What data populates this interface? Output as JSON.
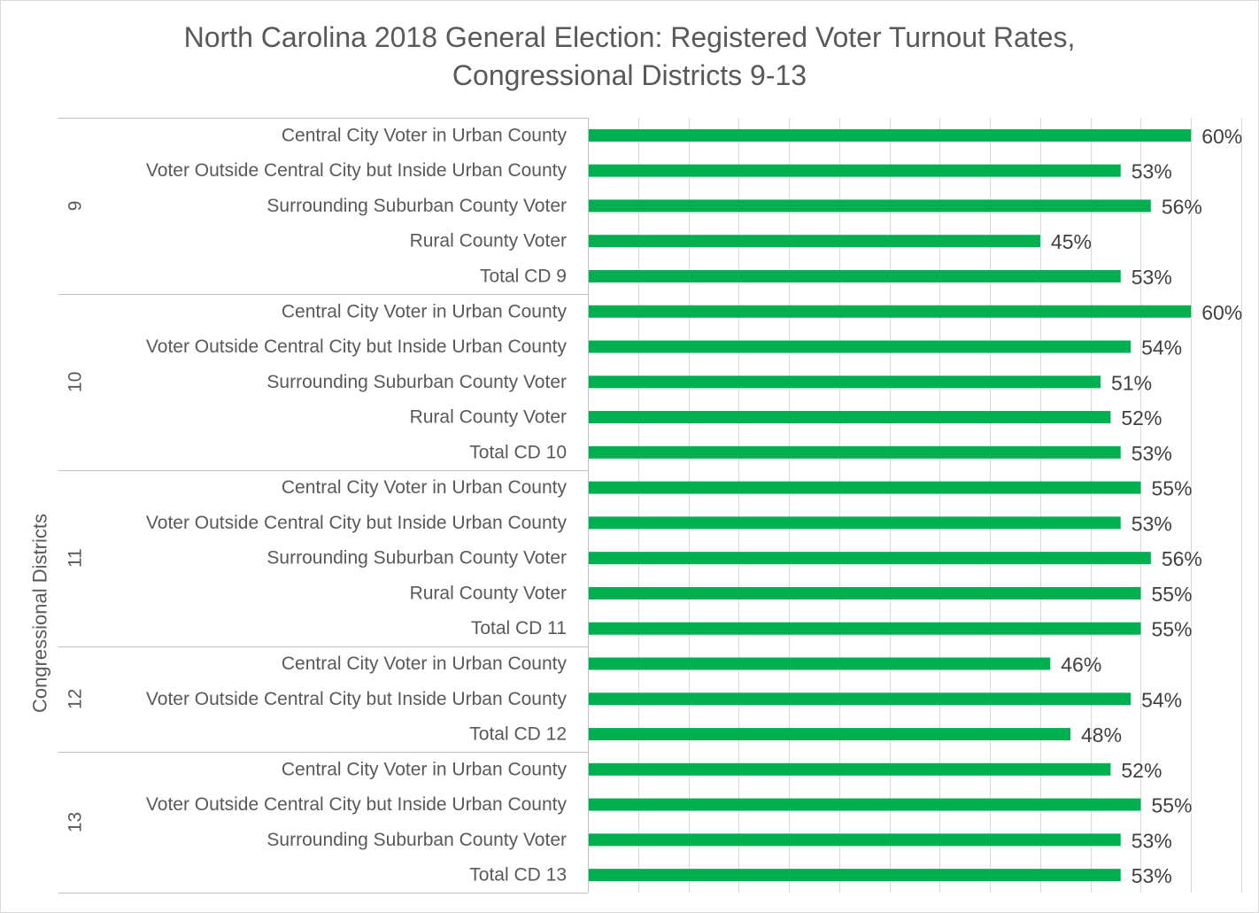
{
  "chart_data": {
    "type": "bar",
    "orientation": "horizontal",
    "title": "North Carolina 2018 General Election: Registered Voter Turnout Rates,",
    "subtitle": "Congressional Districts 9-13",
    "ylabel": "Congressional Districts",
    "xlim": [
      0,
      0.65
    ],
    "grid": true,
    "bar_color": "#00b050",
    "groups": [
      {
        "name": "9",
        "categories": [
          "Central City Voter in Urban County",
          "Voter Outside Central City but Inside Urban County",
          "Surrounding Suburban County Voter",
          "Rural County Voter",
          "Total CD 9"
        ],
        "values": [
          0.6,
          0.53,
          0.56,
          0.45,
          0.53
        ],
        "labels": [
          "60%",
          "53%",
          "56%",
          "45%",
          "53%"
        ]
      },
      {
        "name": "10",
        "categories": [
          "Central City Voter in Urban County",
          "Voter Outside Central City but Inside Urban County",
          "Surrounding Suburban County Voter",
          "Rural County Voter",
          "Total CD 10"
        ],
        "values": [
          0.6,
          0.54,
          0.51,
          0.52,
          0.53
        ],
        "labels": [
          "60%",
          "54%",
          "51%",
          "52%",
          "53%"
        ]
      },
      {
        "name": "11",
        "categories": [
          "Central City Voter in Urban County",
          "Voter Outside Central City but Inside Urban County",
          "Surrounding Suburban County Voter",
          "Rural County Voter",
          "Total CD 11"
        ],
        "values": [
          0.55,
          0.53,
          0.56,
          0.55,
          0.55
        ],
        "labels": [
          "55%",
          "53%",
          "56%",
          "55%",
          "55%"
        ]
      },
      {
        "name": "12",
        "categories": [
          "Central City Voter in Urban County",
          "Voter Outside Central City but Inside Urban County",
          "Total CD 12"
        ],
        "values": [
          0.46,
          0.54,
          0.48
        ],
        "labels": [
          "46%",
          "54%",
          "48%"
        ]
      },
      {
        "name": "13",
        "categories": [
          "Central City Voter in Urban County",
          "Voter Outside Central City but Inside Urban County",
          "Surrounding Suburban County Voter",
          "Total CD 13"
        ],
        "values": [
          0.52,
          0.55,
          0.53,
          0.53
        ],
        "labels": [
          "52%",
          "55%",
          "53%",
          "53%"
        ]
      }
    ]
  }
}
